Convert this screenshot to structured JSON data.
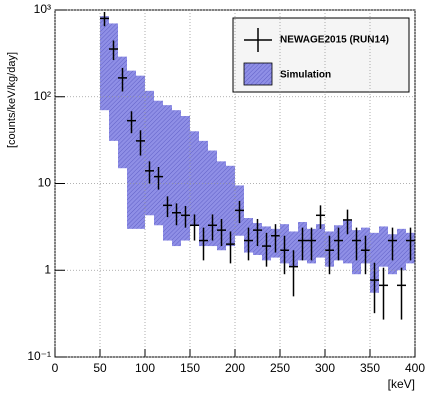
{
  "chart_data": {
    "type": "errorbar",
    "xlabel": "[keV]",
    "ylabel": "[counts/keV/kg/day]",
    "xlim": [
      0,
      400
    ],
    "xticks": [
      0,
      50,
      100,
      150,
      200,
      250,
      300,
      350,
      400
    ],
    "ylim": [
      0.1,
      1000
    ],
    "log_y": true,
    "grid": true,
    "legend": "upper right",
    "yticks": [
      {
        "value": 0.1,
        "label": "10⁻¹"
      },
      1,
      10,
      {
        "value": 100,
        "label": "10²"
      },
      {
        "value": 1000,
        "label": "10³"
      }
    ],
    "x": [
      55,
      65,
      75,
      85,
      95,
      105,
      115,
      125,
      135,
      145,
      155,
      165,
      175,
      185,
      195,
      205,
      215,
      225,
      235,
      245,
      255,
      265,
      275,
      285,
      295,
      305,
      315,
      325,
      335,
      345,
      355,
      365,
      375,
      385,
      395
    ],
    "series": [
      {
        "name": "NEWAGE2015 (RUN14)",
        "color": "#000000",
        "values": [
          800,
          355,
          165,
          53,
          31,
          14,
          12,
          5.6,
          4.6,
          4.3,
          3.3,
          2.2,
          3.3,
          2.9,
          2.0,
          4.9,
          2.2,
          2.9,
          1.9,
          2.5,
          1.7,
          1.1,
          2.2,
          2.2,
          4.3,
          1.7,
          2.2,
          3.8,
          2.2,
          1.7,
          0.77,
          0.67,
          2.2,
          0.67,
          2.2
        ],
        "errors": [
          150,
          90,
          50,
          15,
          10,
          4,
          3.5,
          1.5,
          1.3,
          1.2,
          1.1,
          0.9,
          1.1,
          1,
          0.8,
          1.4,
          0.9,
          1,
          0.8,
          0.9,
          0.8,
          0.6,
          0.9,
          0.9,
          1.3,
          0.8,
          0.9,
          1.2,
          0.9,
          0.8,
          0.45,
          0.4,
          0.9,
          0.4,
          0.9
        ]
      },
      {
        "name": "Simulation",
        "color": "#8f8fe6",
        "low": [
          70,
          31,
          15,
          3,
          3,
          4.3,
          3.3,
          2.2,
          1.9,
          2.2,
          3.3,
          1.9,
          1.9,
          1.7,
          1.9,
          2.5,
          1.6,
          1.5,
          1.3,
          1.4,
          1.2,
          1.1,
          1.3,
          1.2,
          1.4,
          1.1,
          1.3,
          1.2,
          0.9,
          1.2,
          0.55,
          1.1,
          0.9,
          1.0,
          1.2
        ],
        "high": [
          850,
          700,
          290,
          200,
          175,
          117,
          90,
          80,
          70,
          60,
          40,
          31,
          24,
          18,
          16,
          9.5,
          4,
          3.5,
          3.2,
          3.0,
          3.4,
          2.8,
          3.6,
          3.0,
          3.4,
          2.8,
          3.3,
          3.8,
          2.9,
          3.1,
          2.7,
          3.2,
          2.6,
          3.0,
          2.7
        ]
      }
    ]
  }
}
